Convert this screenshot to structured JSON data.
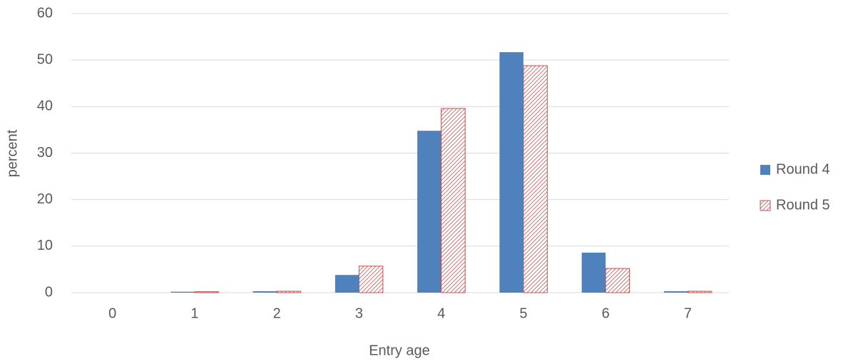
{
  "chart_data": {
    "type": "bar",
    "x_label": "Entry age",
    "y_label": "percent",
    "categories": [
      "0",
      "1",
      "2",
      "3",
      "4",
      "5",
      "6",
      "7"
    ],
    "series": [
      {
        "name": "Round 4",
        "color": "#4f81bd",
        "fill": "solid",
        "values": [
          0,
          0.2,
          0.3,
          3.8,
          34.8,
          51.7,
          8.6,
          0.3
        ]
      },
      {
        "name": "Round 5",
        "color": "#c0504d",
        "fill": "hatch",
        "values": [
          0,
          0.2,
          0.3,
          5.7,
          39.6,
          48.8,
          5.2,
          0.3
        ]
      }
    ],
    "ylim": [
      0,
      60
    ],
    "yticks": [
      0,
      10,
      20,
      30,
      40,
      50,
      60
    ],
    "grid": true,
    "legend": "right"
  }
}
